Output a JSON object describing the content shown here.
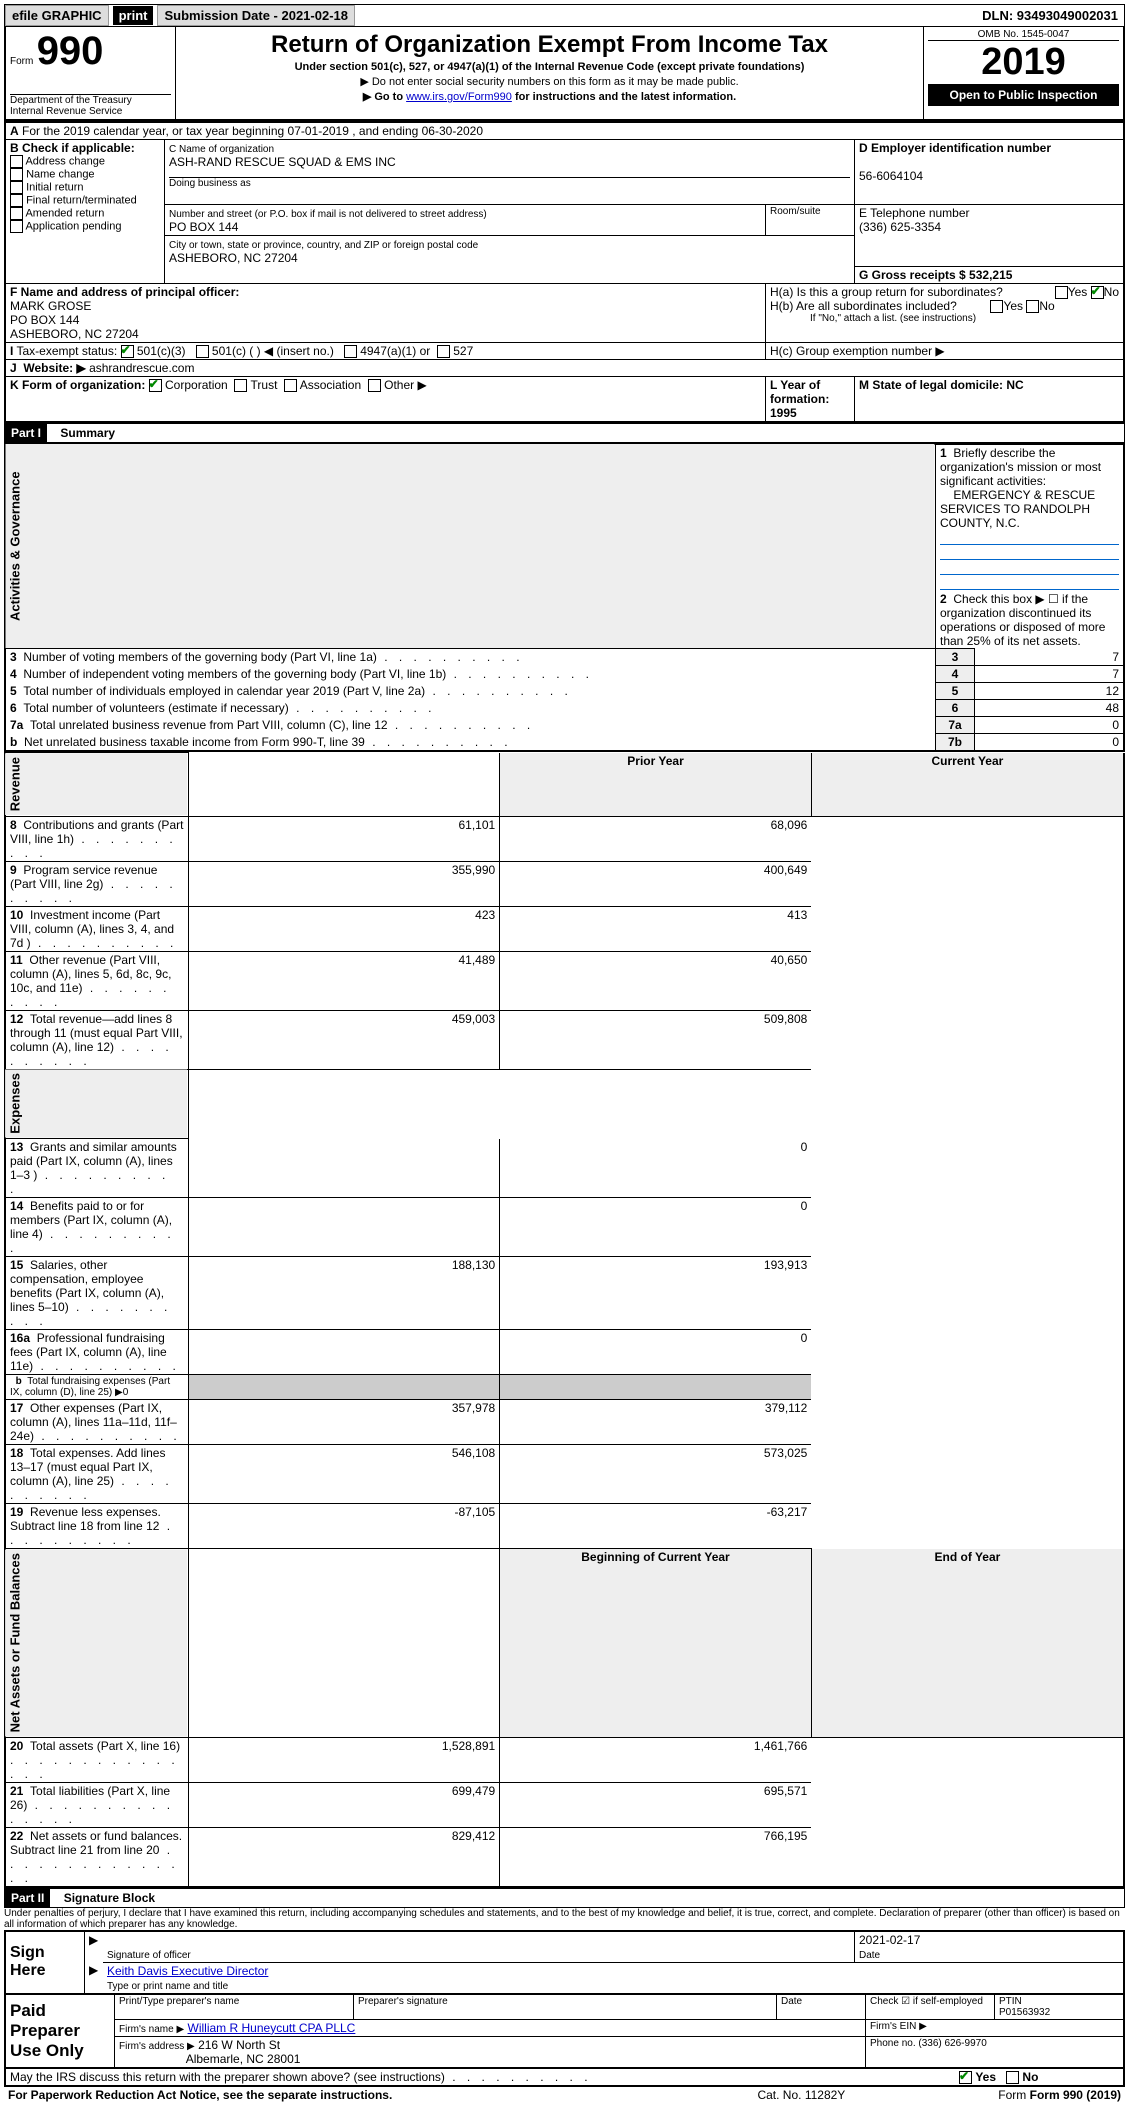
{
  "topbar": {
    "efile": "efile GRAPHIC",
    "print": "print",
    "submission": "Submission Date - 2021-02-18",
    "dln": "DLN: 93493049002031"
  },
  "header": {
    "form_word": "Form",
    "form_number": "990",
    "department": "Department of the Treasury",
    "irs": "Internal Revenue Service",
    "title": "Return of Organization Exempt From Income Tax",
    "subtitle": "Under section 501(c), 527, or 4947(a)(1) of the Internal Revenue Code (except private foundations)",
    "note1": "▶ Do not enter social security numbers on this form as it may be made public.",
    "note2_pre": "▶ Go to ",
    "note2_link": "www.irs.gov/Form990",
    "note2_post": " for instructions and the latest information.",
    "omb": "OMB No. 1545-0047",
    "year": "2019",
    "open": "Open to Public Inspection"
  },
  "sectionA": {
    "period": "For the 2019 calendar year, or tax year beginning 07-01-2019   , and ending 06-30-2020",
    "b_label": "B Check if applicable:",
    "b_options": [
      "Address change",
      "Name change",
      "Initial return",
      "Final return/terminated",
      "Amended return",
      "Application pending"
    ],
    "c_label": "C Name of organization",
    "org_name": "ASH-RAND RESCUE SQUAD & EMS INC",
    "dba_label": "Doing business as",
    "address_label": "Number and street (or P.O. box if mail is not delivered to street address)",
    "address": "PO BOX 144",
    "room_label": "Room/suite",
    "city_label": "City or town, state or province, country, and ZIP or foreign postal code",
    "city": "ASHEBORO, NC  27204",
    "d_label": "D Employer identification number",
    "ein": "56-6064104",
    "e_label": "E Telephone number",
    "phone": "(336) 625-3354",
    "g_label": "G Gross receipts $ 532,215",
    "f_label": "F  Name and address of principal officer:",
    "officer_name": "MARK GROSE",
    "officer_addr1": "PO BOX 144",
    "officer_addr2": "ASHEBORO, NC  27204",
    "ha_label": "H(a)  Is this a group return for subordinates?",
    "hb_label": "H(b)  Are all subordinates included?",
    "hb_note": "If \"No,\" attach a list. (see instructions)",
    "hc_label": "H(c)  Group exemption number ▶",
    "i_label": "Tax-exempt status:",
    "i_501c3": "501(c)(3)",
    "i_501c": "501(c) (  ) ◀ (insert no.)",
    "i_4947": "4947(a)(1) or",
    "i_527": "527",
    "j_label": "J",
    "j_website_label": "Website: ▶",
    "website": "ashrandrescue.com",
    "k_label": "K Form of organization:",
    "k_corp": "Corporation",
    "k_trust": "Trust",
    "k_assoc": "Association",
    "k_other": "Other ▶",
    "l_label": "L Year of formation: 1995",
    "m_label": "M State of legal domicile: NC"
  },
  "part1": {
    "header": "Part I",
    "title": "Summary",
    "line1_label": "Briefly describe the organization's mission or most significant activities:",
    "mission": "EMERGENCY & RESCUE SERVICES TO RANDOLPH COUNTY, N.C.",
    "line2": "Check this box ▶ ☐  if the organization discontinued its operations or disposed of more than 25% of its net assets.",
    "vert1": "Activities & Governance",
    "vert2": "Revenue",
    "vert3": "Expenses",
    "vert4": "Net Assets or Fund Balances",
    "rows_gov": [
      {
        "num": "3",
        "text": "Number of voting members of the governing body (Part VI, line 1a)",
        "box": "3",
        "val": "7"
      },
      {
        "num": "4",
        "text": "Number of independent voting members of the governing body (Part VI, line 1b)",
        "box": "4",
        "val": "7"
      },
      {
        "num": "5",
        "text": "Total number of individuals employed in calendar year 2019 (Part V, line 2a)",
        "box": "5",
        "val": "12"
      },
      {
        "num": "6",
        "text": "Total number of volunteers (estimate if necessary)",
        "box": "6",
        "val": "48"
      },
      {
        "num": "7a",
        "text": "Total unrelated business revenue from Part VIII, column (C), line 12",
        "box": "7a",
        "val": "0"
      },
      {
        "num": "b",
        "text": "Net unrelated business taxable income from Form 990-T, line 39",
        "box": "7b",
        "val": "0"
      }
    ],
    "col_prior": "Prior Year",
    "col_current": "Current Year",
    "rows_rev": [
      {
        "num": "8",
        "text": "Contributions and grants (Part VIII, line 1h)",
        "prior": "61,101",
        "curr": "68,096"
      },
      {
        "num": "9",
        "text": "Program service revenue (Part VIII, line 2g)",
        "prior": "355,990",
        "curr": "400,649"
      },
      {
        "num": "10",
        "text": "Investment income (Part VIII, column (A), lines 3, 4, and 7d )",
        "prior": "423",
        "curr": "413"
      },
      {
        "num": "11",
        "text": "Other revenue (Part VIII, column (A), lines 5, 6d, 8c, 9c, 10c, and 11e)",
        "prior": "41,489",
        "curr": "40,650"
      },
      {
        "num": "12",
        "text": "Total revenue—add lines 8 through 11 (must equal Part VIII, column (A), line 12)",
        "prior": "459,003",
        "curr": "509,808"
      }
    ],
    "rows_exp": [
      {
        "num": "13",
        "text": "Grants and similar amounts paid (Part IX, column (A), lines 1–3 )",
        "prior": "",
        "curr": "0"
      },
      {
        "num": "14",
        "text": "Benefits paid to or for members (Part IX, column (A), line 4)",
        "prior": "",
        "curr": "0"
      },
      {
        "num": "15",
        "text": "Salaries, other compensation, employee benefits (Part IX, column (A), lines 5–10)",
        "prior": "188,130",
        "curr": "193,913"
      },
      {
        "num": "16a",
        "text": "Professional fundraising fees (Part IX, column (A), line 11e)",
        "prior": "",
        "curr": "0"
      },
      {
        "num": "b",
        "text": "Total fundraising expenses (Part IX, column (D), line 25) ▶0",
        "prior": null,
        "curr": null
      },
      {
        "num": "17",
        "text": "Other expenses (Part IX, column (A), lines 11a–11d, 11f–24e)",
        "prior": "357,978",
        "curr": "379,112"
      },
      {
        "num": "18",
        "text": "Total expenses. Add lines 13–17 (must equal Part IX, column (A), line 25)",
        "prior": "546,108",
        "curr": "573,025"
      },
      {
        "num": "19",
        "text": "Revenue less expenses. Subtract line 18 from line 12",
        "prior": "-87,105",
        "curr": "-63,217"
      }
    ],
    "col_begin": "Beginning of Current Year",
    "col_end": "End of Year",
    "rows_net": [
      {
        "num": "20",
        "text": "Total assets (Part X, line 16)",
        "prior": "1,528,891",
        "curr": "1,461,766"
      },
      {
        "num": "21",
        "text": "Total liabilities (Part X, line 26)",
        "prior": "699,479",
        "curr": "695,571"
      },
      {
        "num": "22",
        "text": "Net assets or fund balances. Subtract line 21 from line 20",
        "prior": "829,412",
        "curr": "766,195"
      }
    ]
  },
  "part2": {
    "header": "Part II",
    "title": "Signature Block",
    "declaration": "Under penalties of perjury, I declare that I have examined this return, including accompanying schedules and statements, and to the best of my knowledge and belief, it is true, correct, and complete. Declaration of preparer (other than officer) is based on all information of which preparer has any knowledge.",
    "sign_here": "Sign Here",
    "sig_officer": "Signature of officer",
    "sig_date": "2021-02-17",
    "date_label": "Date",
    "officer_printed": "Keith Davis  Executive Director",
    "type_name": "Type or print name and title",
    "paid_prep": "Paid Preparer Use Only",
    "col_print": "Print/Type preparer's name",
    "col_sig": "Preparer's signature",
    "col_date": "Date",
    "check_self": "Check ☑ if self-employed",
    "ptin_label": "PTIN",
    "ptin": "P01563932",
    "firm_name_label": "Firm's name    ▶",
    "firm_name": "William R Huneycutt CPA PLLC",
    "firm_ein_label": "Firm's EIN ▶",
    "firm_addr_label": "Firm's address ▶",
    "firm_addr1": "216 W North St",
    "firm_addr2": "Albemarle, NC  28001",
    "phone_label": "Phone no. (336) 626-9970",
    "discuss": "May the IRS discuss this return with the preparer shown above? (see instructions)",
    "yes": "Yes",
    "no": "No"
  },
  "footer": {
    "pra": "For Paperwork Reduction Act Notice, see the separate instructions.",
    "cat": "Cat. No. 11282Y",
    "form": "Form 990 (2019)"
  }
}
